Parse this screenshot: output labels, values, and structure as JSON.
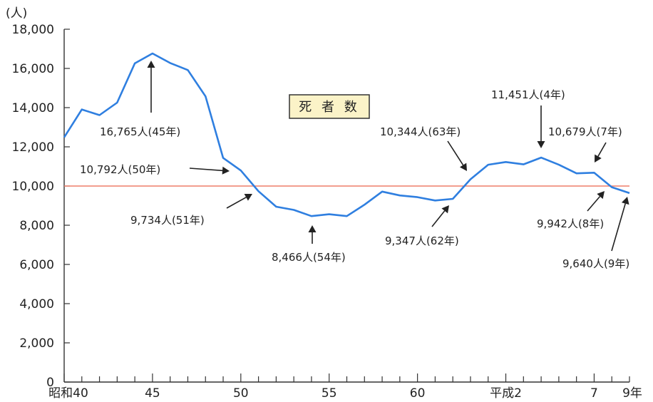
{
  "chart_data": {
    "type": "line",
    "title": "死 者 数",
    "y_unit": "(人)",
    "ylim": [
      0,
      18000
    ],
    "y_ticks": [
      "0",
      "2,000",
      "4,000",
      "6,000",
      "8,000",
      "10,000",
      "12,000",
      "14,000",
      "16,000",
      "18,000"
    ],
    "x_tick_labels": [
      {
        "x": 0,
        "label": "昭和40"
      },
      {
        "x": 5,
        "label": "45"
      },
      {
        "x": 10,
        "label": "50"
      },
      {
        "x": 15,
        "label": "55"
      },
      {
        "x": 20,
        "label": "60"
      },
      {
        "x": 25,
        "label": "平成2"
      },
      {
        "x": 30,
        "label": "7"
      },
      {
        "x": 32,
        "label": "9年"
      }
    ],
    "reference_value": 10000,
    "series": [
      {
        "values": [
          12484,
          13904,
          13618,
          14256,
          16257,
          16765,
          16278,
          15918,
          14574,
          11432,
          10792,
          9734,
          8945,
          8783,
          8466,
          8560,
          8466,
          9048,
          9717,
          9520,
          9431,
          9261,
          9347,
          10344,
          11086,
          11227,
          11105,
          11451,
          11087,
          10649,
          10679,
          9942,
          9640
        ]
      }
    ],
    "annotations": [
      {
        "label": "16,765人(45年)",
        "x": 5,
        "value": 16765
      },
      {
        "label": "10,792人(50年)",
        "x": 10,
        "value": 10792
      },
      {
        "label": "9,734人(51年)",
        "x": 11,
        "value": 9734
      },
      {
        "label": "8,466人(54年)",
        "x": 14,
        "value": 8466
      },
      {
        "label": "9,347人(62年)",
        "x": 22,
        "value": 9347
      },
      {
        "label": "10,344人(63年)",
        "x": 23,
        "value": 10344
      },
      {
        "label": "11,451人(4年)",
        "x": 27,
        "value": 11451
      },
      {
        "label": "10,679人(7年)",
        "x": 30,
        "value": 10679
      },
      {
        "label": "9,942人(8年)",
        "x": 31,
        "value": 9942
      },
      {
        "label": "9,640人(9年)",
        "x": 32,
        "value": 9640
      }
    ],
    "colors": {
      "line": "#2f7fe0",
      "reference": "#ee7f6a",
      "title_box": "#fbf3c8"
    }
  }
}
